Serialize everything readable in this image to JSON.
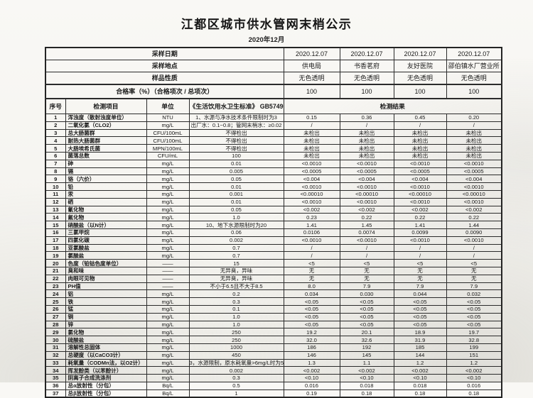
{
  "title": "江都区城市供水管网末梢公示",
  "subtitle": "2020年12月",
  "colors": {
    "ink": "#1c1c1c",
    "border": "#2b2b2b",
    "page_bg": "#f7f6f2"
  },
  "info_rows": [
    {
      "label": "采样日期",
      "values": [
        "2020.12.07",
        "2020.12.07",
        "2020.12.07",
        "2020.12.07"
      ]
    },
    {
      "label": "采样地点",
      "values": [
        "供电局",
        "书香茗府",
        "友好医院",
        "邵伯镇水厂营业所"
      ]
    },
    {
      "label": "样品性质",
      "values": [
        "无色透明",
        "无色透明",
        "无色透明",
        "无色透明"
      ]
    },
    {
      "label": "合格率（%）（合格项次 / 总项次）",
      "values": [
        "100",
        "100",
        "100",
        "100"
      ]
    }
  ],
  "table": {
    "headers": {
      "no": "序号",
      "item": "检测项目",
      "unit": "单位",
      "standard": "《生活饮用水卫生标准》 GB5749",
      "result": "检测结果"
    },
    "rows": [
      [
        "1",
        "浑浊度（散射浊度单位）",
        "NTU",
        "1、水源与净水技术条件限制时为3",
        "0.15",
        "0.36",
        "0.45",
        "0.20"
      ],
      [
        "2",
        "二氧化氯（CLO2）",
        "mg/L",
        "出厂水：0.1~0.8；管网末梢水：≥0.02",
        "/",
        "/",
        "/",
        "/"
      ],
      [
        "3",
        "总大肠菌群",
        "CFU/100mL",
        "不得检出",
        "未检出",
        "未检出",
        "未检出",
        "未检出"
      ],
      [
        "4",
        "耐热大肠菌群",
        "CFU/100mL",
        "不得检出",
        "未检出",
        "未检出",
        "未检出",
        "未检出"
      ],
      [
        "5",
        "大肠埃希氏菌",
        "MPN/100mL",
        "不得检出",
        "未检出",
        "未检出",
        "未检出",
        "未检出"
      ],
      [
        "6",
        "菌落总数",
        "CFU/mL",
        "100",
        "未检出",
        "未检出",
        "未检出",
        "未检出"
      ],
      [
        "7",
        "砷",
        "mg/L",
        "0.01",
        "<0.0010",
        "<0.0010",
        "<0.0010",
        "<0.0010"
      ],
      [
        "8",
        "镉",
        "mg/L",
        "0.005",
        "<0.0005",
        "<0.0005",
        "<0.0005",
        "<0.0005"
      ],
      [
        "9",
        "铬（六价）",
        "mg/L",
        "0.05",
        "<0.004",
        "<0.004",
        "<0.004",
        "<0.004"
      ],
      [
        "10",
        "铅",
        "mg/L",
        "0.01",
        "<0.0010",
        "<0.0010",
        "<0.0010",
        "<0.0010"
      ],
      [
        "11",
        "汞",
        "mg/L",
        "0.001",
        "<0.00010",
        "<0.00010",
        "<0.00010",
        "<0.00010"
      ],
      [
        "12",
        "硒",
        "mg/L",
        "0.01",
        "<0.0010",
        "<0.0010",
        "<0.0010",
        "<0.0010"
      ],
      [
        "13",
        "氰化物",
        "mg/L",
        "0.05",
        "<0.002",
        "<0.002",
        "<0.002",
        "<0.002"
      ],
      [
        "14",
        "氟化物",
        "mg/L",
        "1.0",
        "0.23",
        "0.22",
        "0.22",
        "0.22"
      ],
      [
        "15",
        "硝酸盐（以N计）",
        "mg/L",
        "10、地下水源限制时为20",
        "1.41",
        "1.45",
        "1.41",
        "1.44"
      ],
      [
        "16",
        "三氯甲烷",
        "mg/L",
        "0.06",
        "0.0106",
        "0.0074",
        "0.0099",
        "0.0090"
      ],
      [
        "17",
        "四氯化碳",
        "mg/L",
        "0.002",
        "<0.0010",
        "<0.0010",
        "<0.0010",
        "<0.0010"
      ],
      [
        "18",
        "亚氯酸盐",
        "mg/L",
        "0.7",
        "/",
        "/",
        "/",
        "/"
      ],
      [
        "19",
        "氯酸盐",
        "mg/L",
        "0.7",
        "/",
        "/",
        "/",
        "/"
      ],
      [
        "20",
        "色度（铂钴色度单位）",
        "——",
        "15",
        "<5",
        "<5",
        "<5",
        "<5"
      ],
      [
        "21",
        "臭和味",
        "——",
        "无异臭，异味",
        "无",
        "无",
        "无",
        "无"
      ],
      [
        "22",
        "肉眼可见物",
        "——",
        "无异臭，异味",
        "无",
        "无",
        "无",
        "无"
      ],
      [
        "23",
        "PH值",
        "——",
        "不小于6.5且不大于8.5",
        "8.0",
        "7.9",
        "7.9",
        "7.9"
      ],
      [
        "24",
        "铝",
        "mg/L",
        "0.2",
        "0.034",
        "0.030",
        "0.044",
        "0.032"
      ],
      [
        "25",
        "铁",
        "mg/L",
        "0.3",
        "<0.05",
        "<0.05",
        "<0.05",
        "<0.05"
      ],
      [
        "26",
        "锰",
        "mg/L",
        "0.1",
        "<0.05",
        "<0.05",
        "<0.05",
        "<0.05"
      ],
      [
        "27",
        "铜",
        "mg/L",
        "1.0",
        "<0.05",
        "<0.05",
        "<0.05",
        "<0.05"
      ],
      [
        "28",
        "锌",
        "mg/L",
        "1.0",
        "<0.05",
        "<0.05",
        "<0.05",
        "<0.05"
      ],
      [
        "29",
        "氯化物",
        "mg/L",
        "250",
        "19.2",
        "20.1",
        "18.9",
        "19.7"
      ],
      [
        "30",
        "硫酸盐",
        "mg/L",
        "250",
        "32.0",
        "32.6",
        "31.9",
        "32.8"
      ],
      [
        "31",
        "溶解性总固体",
        "mg/L",
        "1000",
        "186",
        "192",
        "185",
        "199"
      ],
      [
        "32",
        "总硬度（以CaCO3计）",
        "mg/L",
        "450",
        "146",
        "145",
        "144",
        "151"
      ],
      [
        "33",
        "耗氧量（CODMn法，以O2计）",
        "mg/L",
        "3，水源限制，原水耗氧量>6mg/L时为5",
        "1.3",
        "1.1",
        "1.2",
        "1.2"
      ],
      [
        "34",
        "挥发酚类（以苯酚计）",
        "mg/L",
        "0.002",
        "<0.002",
        "<0.002",
        "<0.002",
        "<0.002"
      ],
      [
        "35",
        "阴离子合成洗涤剂",
        "mg/L",
        "0.3",
        "<0.10",
        "<0.10",
        "<0.10",
        "<0.10"
      ],
      [
        "36",
        "总α放射性（分包）",
        "Bq/L",
        "0.5",
        "0.016",
        "0.018",
        "0.018",
        "0.016"
      ],
      [
        "37",
        "总β放射性（分包）",
        "Bq/L",
        "1",
        "0.19",
        "0.18",
        "0.18",
        "0.18"
      ]
    ]
  }
}
